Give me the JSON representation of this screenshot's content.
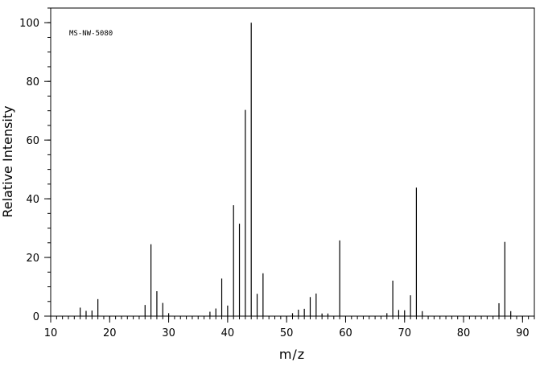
{
  "chart_data": {
    "type": "bar",
    "code": "MS-NW-5080",
    "xlabel": "m/z",
    "ylabel": "Relative Intensity",
    "xlim": [
      10,
      92
    ],
    "ylim": [
      0,
      105
    ],
    "x_major_ticks": [
      10,
      20,
      30,
      40,
      50,
      60,
      70,
      80,
      90
    ],
    "y_major_ticks": [
      0,
      20,
      40,
      60,
      80,
      100
    ],
    "x_minor_step": 1,
    "y_minor_step": 5,
    "grid": false,
    "peaks": [
      {
        "mz": 15,
        "intensity": 2.9
      },
      {
        "mz": 16,
        "intensity": 1.8
      },
      {
        "mz": 17,
        "intensity": 1.9
      },
      {
        "mz": 18,
        "intensity": 5.8
      },
      {
        "mz": 26,
        "intensity": 3.8
      },
      {
        "mz": 27,
        "intensity": 24.5
      },
      {
        "mz": 28,
        "intensity": 8.5
      },
      {
        "mz": 29,
        "intensity": 4.5
      },
      {
        "mz": 30,
        "intensity": 1.0
      },
      {
        "mz": 37,
        "intensity": 1.5
      },
      {
        "mz": 38,
        "intensity": 2.6
      },
      {
        "mz": 39,
        "intensity": 12.8
      },
      {
        "mz": 40,
        "intensity": 3.6
      },
      {
        "mz": 41,
        "intensity": 37.8
      },
      {
        "mz": 42,
        "intensity": 31.5
      },
      {
        "mz": 43,
        "intensity": 70.3
      },
      {
        "mz": 44,
        "intensity": 100
      },
      {
        "mz": 45,
        "intensity": 7.6
      },
      {
        "mz": 46,
        "intensity": 14.6
      },
      {
        "mz": 51,
        "intensity": 1.0
      },
      {
        "mz": 52,
        "intensity": 2.2
      },
      {
        "mz": 53,
        "intensity": 2.5
      },
      {
        "mz": 54,
        "intensity": 6.5
      },
      {
        "mz": 55,
        "intensity": 7.7
      },
      {
        "mz": 56,
        "intensity": 0.9
      },
      {
        "mz": 57,
        "intensity": 0.9
      },
      {
        "mz": 59,
        "intensity": 25.8
      },
      {
        "mz": 67,
        "intensity": 1.0
      },
      {
        "mz": 68,
        "intensity": 12.1
      },
      {
        "mz": 69,
        "intensity": 2.1
      },
      {
        "mz": 70,
        "intensity": 2.0
      },
      {
        "mz": 71,
        "intensity": 7.1
      },
      {
        "mz": 72,
        "intensity": 43.8
      },
      {
        "mz": 73,
        "intensity": 1.7
      },
      {
        "mz": 86,
        "intensity": 4.4
      },
      {
        "mz": 87,
        "intensity": 25.3
      },
      {
        "mz": 88,
        "intensity": 1.7
      }
    ]
  }
}
